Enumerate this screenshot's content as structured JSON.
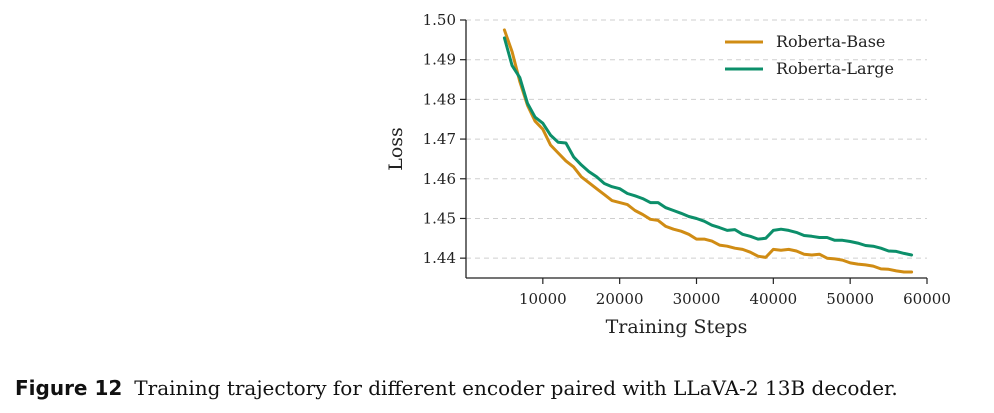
{
  "caption": {
    "label": "Figure 12",
    "text": "Training trajectory for different encoder paired with LLaVA-2 13B decoder."
  },
  "chart_data": {
    "type": "line",
    "xlabel": "Training Steps",
    "ylabel": "Loss",
    "xlim": [
      0,
      60000
    ],
    "ylim": [
      1.435,
      1.5
    ],
    "xticks": [
      10000,
      20000,
      30000,
      40000,
      50000,
      60000
    ],
    "yticks": [
      1.44,
      1.45,
      1.46,
      1.47,
      1.48,
      1.49,
      1.5
    ],
    "grid": "horizontal-dashed",
    "legend_position": "top-right",
    "series": [
      {
        "name": "Roberta-Base",
        "color": "#d08c14",
        "x": [
          5000,
          6000,
          7000,
          8000,
          9000,
          10000,
          11000,
          12000,
          13000,
          14000,
          15000,
          16000,
          17000,
          18000,
          19000,
          20000,
          21000,
          22000,
          23000,
          24000,
          25000,
          26000,
          27000,
          28000,
          29000,
          30000,
          31000,
          32000,
          33000,
          34000,
          35000,
          36000,
          37000,
          38000,
          39000,
          40000,
          41000,
          42000,
          43000,
          44000,
          45000,
          46000,
          47000,
          48000,
          49000,
          50000,
          51000,
          52000,
          53000,
          54000,
          55000,
          56000,
          57000,
          58000
        ],
        "values": [
          1.4975,
          1.492,
          1.4845,
          1.4785,
          1.4745,
          1.4725,
          1.4685,
          1.4665,
          1.4645,
          1.463,
          1.4605,
          1.459,
          1.4575,
          1.456,
          1.4545,
          1.454,
          1.4535,
          1.452,
          1.451,
          1.4498,
          1.4495,
          1.448,
          1.4473,
          1.4468,
          1.446,
          1.4448,
          1.4448,
          1.4443,
          1.4433,
          1.443,
          1.4425,
          1.4422,
          1.4415,
          1.4405,
          1.4402,
          1.4422,
          1.442,
          1.4422,
          1.4418,
          1.441,
          1.4408,
          1.441,
          1.44,
          1.4398,
          1.4395,
          1.4388,
          1.4385,
          1.4383,
          1.438,
          1.4373,
          1.4372,
          1.4368,
          1.4365,
          1.4365
        ]
      },
      {
        "name": "Roberta-Large",
        "color": "#0c8f6a",
        "x": [
          5000,
          6000,
          7000,
          8000,
          9000,
          10000,
          11000,
          12000,
          13000,
          14000,
          15000,
          16000,
          17000,
          18000,
          19000,
          20000,
          21000,
          22000,
          23000,
          24000,
          25000,
          26000,
          27000,
          28000,
          29000,
          30000,
          31000,
          32000,
          33000,
          34000,
          35000,
          36000,
          37000,
          38000,
          39000,
          40000,
          41000,
          42000,
          43000,
          44000,
          45000,
          46000,
          47000,
          48000,
          49000,
          50000,
          51000,
          52000,
          53000,
          54000,
          55000,
          56000,
          57000,
          58000
        ],
        "values": [
          1.4955,
          1.4885,
          1.4855,
          1.479,
          1.4755,
          1.474,
          1.471,
          1.4692,
          1.469,
          1.4655,
          1.4635,
          1.4618,
          1.4605,
          1.4588,
          1.458,
          1.4575,
          1.4563,
          1.4557,
          1.455,
          1.454,
          1.454,
          1.4527,
          1.452,
          1.4513,
          1.4505,
          1.45,
          1.4493,
          1.4483,
          1.4477,
          1.447,
          1.4472,
          1.446,
          1.4455,
          1.4448,
          1.445,
          1.447,
          1.4473,
          1.447,
          1.4465,
          1.4457,
          1.4455,
          1.4452,
          1.4452,
          1.4445,
          1.4445,
          1.4442,
          1.4438,
          1.4432,
          1.443,
          1.4425,
          1.4418,
          1.4417,
          1.4412,
          1.4408
        ]
      }
    ]
  }
}
